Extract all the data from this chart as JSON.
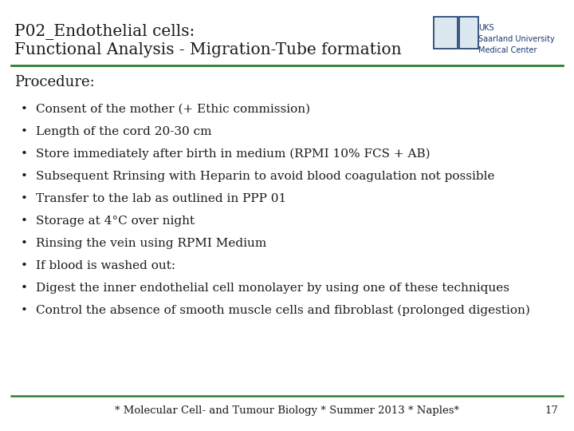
{
  "title_line1": "P02_Endothelial cells:",
  "title_line2": "Functional Analysis - Migration-Tube formation",
  "section_header": "Procedure:",
  "bullet_points": [
    "Consent of the mother (+ Ethic commission)",
    "Length of the cord 20-30 cm",
    "Store immediately after birth in medium (RPMI 10% FCS + AB)",
    "Subsequent Rrinsing with Heparin to avoid blood coagulation not possible",
    "Transfer to the lab as outlined in PPP 01",
    "Storage at 4°C over night",
    "Rinsing the vein using RPMI Medium",
    "If blood is washed out:",
    "Digest the inner endothelial cell monolayer by using one of these techniques",
    "Control the absence of smooth muscle cells and fibroblast (prolonged digestion)"
  ],
  "footer_text": "* Molecular Cell- and Tumour Biology * Summer 2013 * Naples*",
  "page_number": "17",
  "bg_color": "#ffffff",
  "title_color": "#1a1a1a",
  "text_color": "#1a1a1a",
  "header_line_color": "#2e7d32",
  "footer_line_color": "#2e7d32",
  "uks_text": "UKS\nSaarland University\nMedical Center",
  "uks_color": "#1a3a6e",
  "title_fontsize": 14.5,
  "section_fontsize": 13,
  "bullet_fontsize": 11,
  "footer_fontsize": 9.5
}
